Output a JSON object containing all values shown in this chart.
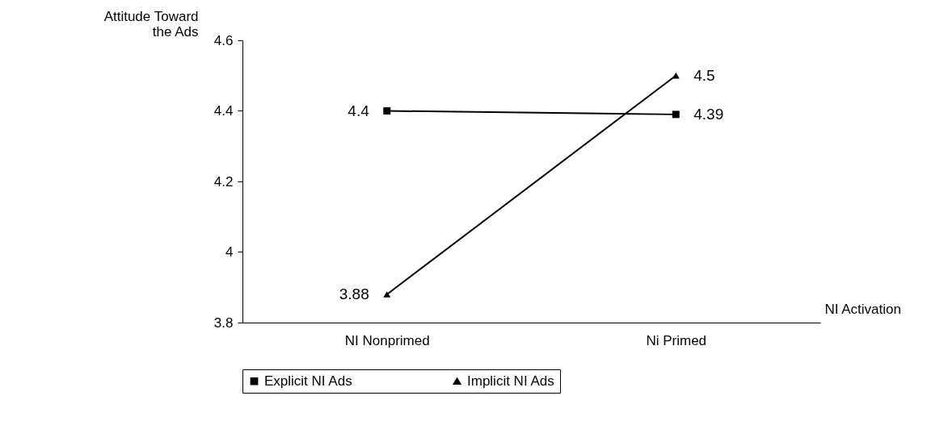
{
  "chart_data": {
    "type": "line",
    "xlabel": "NI Activation",
    "ylabel": "Attitude Toward the Ads",
    "categories": [
      "NI Nonprimed",
      "Ni Primed"
    ],
    "series": [
      {
        "name": "Explicit NI Ads",
        "color": "#000000",
        "marker": "square",
        "values": [
          4.4,
          4.39
        ]
      },
      {
        "name": "Implicit NI Ads",
        "color": "#000000",
        "marker": "triangle",
        "values": [
          3.88,
          4.5
        ]
      }
    ],
    "ylim": [
      3.8,
      4.6
    ],
    "yticks": [
      3.8,
      {
        "value": 4,
        "label": "4"
      },
      4.2,
      4.4,
      4.6
    ],
    "grid": false,
    "legend": "bottom",
    "data_labels": true,
    "line_style": "solid"
  }
}
